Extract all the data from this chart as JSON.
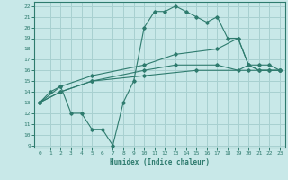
{
  "xlabel": "Humidex (Indice chaleur)",
  "bg_color": "#c8e8e8",
  "line_color": "#2e7b6e",
  "grid_color": "#a8d0d0",
  "xlim": [
    -0.5,
    23.5
  ],
  "ylim": [
    8.8,
    22.4
  ],
  "xticks": [
    0,
    1,
    2,
    3,
    4,
    5,
    6,
    7,
    8,
    9,
    10,
    11,
    12,
    13,
    14,
    15,
    16,
    17,
    18,
    19,
    20,
    21,
    22,
    23
  ],
  "yticks": [
    9,
    10,
    11,
    12,
    13,
    14,
    15,
    16,
    17,
    18,
    19,
    20,
    21,
    22
  ],
  "line1_x": [
    0,
    1,
    2,
    3,
    4,
    5,
    6,
    7,
    8,
    9,
    10,
    11,
    12,
    13,
    14,
    15,
    16,
    17,
    18,
    19,
    20,
    21,
    22,
    23
  ],
  "line1_y": [
    13,
    14,
    14.5,
    12,
    12,
    10.5,
    10.5,
    9,
    13,
    15,
    20,
    21.5,
    21.5,
    22,
    21.5,
    21,
    20.5,
    21,
    19,
    19,
    16.5,
    16,
    16,
    16
  ],
  "line2_x": [
    0,
    2,
    5,
    10,
    13,
    17,
    19,
    20,
    21,
    22,
    23
  ],
  "line2_y": [
    13,
    14.5,
    15.5,
    16.5,
    17.5,
    18,
    19,
    16.5,
    16.5,
    16.5,
    16
  ],
  "line3_x": [
    0,
    2,
    5,
    10,
    13,
    17,
    19,
    20,
    21,
    22,
    23
  ],
  "line3_y": [
    13,
    14,
    15,
    16,
    16.5,
    16.5,
    16,
    16.5,
    16,
    16,
    16
  ],
  "line4_x": [
    0,
    2,
    5,
    10,
    15,
    20,
    23
  ],
  "line4_y": [
    13,
    14,
    15,
    15.5,
    16,
    16,
    16
  ]
}
